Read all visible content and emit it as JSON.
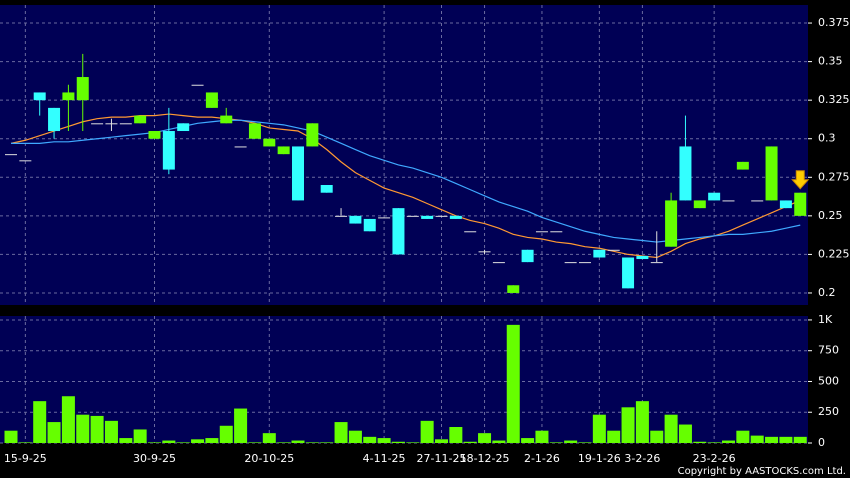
{
  "chart_data": [
    {
      "type": "candlestick",
      "open": [
        0.29,
        0.286,
        0.33,
        0.32,
        0.325,
        0.325,
        0.31,
        0.31,
        0.31,
        0.31,
        0.3,
        0.305,
        0.31,
        0.335,
        0.32,
        0.31,
        0.295,
        0.3,
        0.295,
        0.29,
        0.295,
        0.295,
        0.27,
        0.25,
        0.25,
        0.248,
        0.249,
        0.255,
        0.25,
        0.25,
        0.25,
        0.25,
        0.24,
        0.227,
        0.22,
        0.2,
        0.228,
        0.24,
        0.24,
        0.22,
        0.22,
        0.228,
        0.228,
        0.223,
        0.224,
        0.22,
        0.23,
        0.295,
        0.255,
        0.265,
        0.26,
        0.28,
        0.26,
        0.26,
        0.26,
        0.25
      ],
      "high": [
        0.29,
        0.286,
        0.33,
        0.32,
        0.335,
        0.355,
        0.31,
        0.313,
        0.31,
        0.315,
        0.305,
        0.32,
        0.31,
        0.335,
        0.33,
        0.32,
        0.295,
        0.31,
        0.3,
        0.295,
        0.295,
        0.31,
        0.27,
        0.255,
        0.25,
        0.248,
        0.249,
        0.255,
        0.25,
        0.25,
        0.25,
        0.25,
        0.24,
        0.228,
        0.22,
        0.205,
        0.228,
        0.24,
        0.24,
        0.22,
        0.22,
        0.228,
        0.228,
        0.223,
        0.224,
        0.24,
        0.265,
        0.315,
        0.26,
        0.265,
        0.26,
        0.285,
        0.26,
        0.295,
        0.26,
        0.265
      ],
      "low": [
        0.29,
        0.286,
        0.315,
        0.3,
        0.305,
        0.305,
        0.31,
        0.305,
        0.31,
        0.31,
        0.3,
        0.277,
        0.305,
        0.335,
        0.32,
        0.31,
        0.295,
        0.3,
        0.295,
        0.29,
        0.26,
        0.295,
        0.265,
        0.25,
        0.245,
        0.24,
        0.249,
        0.225,
        0.25,
        0.248,
        0.25,
        0.248,
        0.24,
        0.225,
        0.22,
        0.2,
        0.22,
        0.24,
        0.24,
        0.22,
        0.22,
        0.223,
        0.228,
        0.203,
        0.222,
        0.22,
        0.23,
        0.26,
        0.255,
        0.26,
        0.26,
        0.28,
        0.26,
        0.26,
        0.255,
        0.25
      ],
      "close": [
        0.29,
        0.286,
        0.325,
        0.305,
        0.33,
        0.34,
        0.31,
        0.31,
        0.31,
        0.315,
        0.305,
        0.28,
        0.305,
        0.335,
        0.33,
        0.315,
        0.295,
        0.31,
        0.3,
        0.295,
        0.26,
        0.31,
        0.265,
        0.25,
        0.245,
        0.24,
        0.249,
        0.225,
        0.25,
        0.248,
        0.25,
        0.248,
        0.24,
        0.227,
        0.22,
        0.205,
        0.22,
        0.24,
        0.24,
        0.22,
        0.22,
        0.223,
        0.228,
        0.203,
        0.222,
        0.22,
        0.26,
        0.26,
        0.26,
        0.26,
        0.26,
        0.285,
        0.26,
        0.295,
        0.255,
        0.265
      ],
      "up_color": "#66ff00",
      "down_color": "#33ffff",
      "flat_color": "#e0e0e0",
      "series": [
        {
          "color": "#ff9933",
          "values": [
            0.297,
            0.299,
            0.302,
            0.305,
            0.308,
            0.311,
            0.313,
            0.314,
            0.314,
            0.315,
            0.315,
            0.316,
            0.315,
            0.314,
            0.314,
            0.313,
            0.312,
            0.31,
            0.307,
            0.306,
            0.305,
            0.3,
            0.293,
            0.285,
            0.278,
            0.273,
            0.268,
            0.265,
            0.262,
            0.258,
            0.254,
            0.25,
            0.247,
            0.245,
            0.242,
            0.238,
            0.236,
            0.235,
            0.233,
            0.232,
            0.23,
            0.229,
            0.227,
            0.225,
            0.224,
            0.223,
            0.227,
            0.232,
            0.235,
            0.237,
            0.24,
            0.244,
            0.248,
            0.252,
            0.256,
            0.26
          ]
        },
        {
          "color": "#3fa9ff",
          "values": [
            0.297,
            0.297,
            0.297,
            0.298,
            0.298,
            0.299,
            0.3,
            0.301,
            0.302,
            0.303,
            0.304,
            0.306,
            0.308,
            0.31,
            0.311,
            0.312,
            0.312,
            0.311,
            0.31,
            0.309,
            0.307,
            0.305,
            0.301,
            0.297,
            0.293,
            0.289,
            0.286,
            0.283,
            0.281,
            0.278,
            0.275,
            0.271,
            0.267,
            0.263,
            0.259,
            0.256,
            0.253,
            0.249,
            0.246,
            0.243,
            0.24,
            0.238,
            0.236,
            0.235,
            0.234,
            0.233,
            0.234,
            0.235,
            0.236,
            0.237,
            0.238,
            0.238,
            0.239,
            0.24,
            0.242,
            0.244
          ]
        }
      ],
      "ylim": [
        0.1922,
        0.3867
      ],
      "yticks": [
        0.2,
        0.225,
        0.25,
        0.275,
        0.3,
        0.325,
        0.35,
        0.375
      ],
      "grid": true
    },
    {
      "type": "bar",
      "categories": [
        null,
        "15-9-25",
        null,
        null,
        null,
        null,
        null,
        null,
        null,
        null,
        "30-9-25",
        null,
        null,
        null,
        null,
        null,
        null,
        null,
        "20-10-25",
        null,
        null,
        null,
        null,
        null,
        null,
        null,
        "4-11-25",
        null,
        null,
        null,
        "27-11-25",
        null,
        null,
        "18-12-25",
        null,
        null,
        null,
        "2-1-26",
        null,
        null,
        null,
        "19-1-26",
        null,
        null,
        "3-2-26",
        null,
        null,
        null,
        null,
        "23-2-26",
        null,
        null,
        null,
        null,
        null,
        null
      ],
      "values": [
        100,
        5,
        340,
        170,
        380,
        230,
        220,
        180,
        40,
        110,
        5,
        20,
        5,
        30,
        40,
        140,
        280,
        5,
        80,
        5,
        20,
        5,
        5,
        170,
        100,
        50,
        40,
        10,
        5,
        180,
        30,
        130,
        10,
        80,
        20,
        960,
        40,
        100,
        5,
        20,
        5,
        230,
        100,
        290,
        340,
        100,
        230,
        150,
        10,
        5,
        20,
        100,
        60,
        50,
        50,
        50
      ],
      "color": "#66ff00",
      "ylim": [
        0,
        1032
      ],
      "yticks": [
        0,
        250,
        500,
        750,
        {
          "value": 1000,
          "label": "1K"
        }
      ],
      "grid": true,
      "copyright": "Copyright by AASTOCKS.com Ltd."
    }
  ]
}
